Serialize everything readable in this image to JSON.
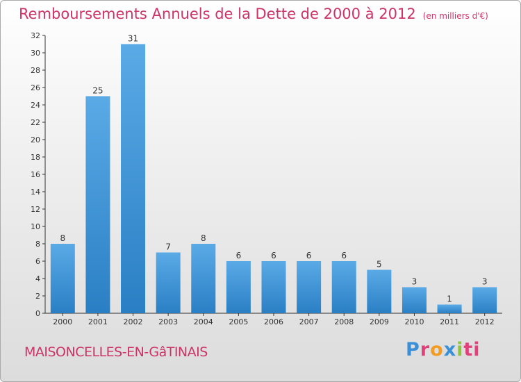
{
  "title": "Remboursements Annuels de la Dette de 2000 à 2012",
  "subtitle": "(en milliers d'€)",
  "commune": "MAISONCELLES-EN-GâTINAIS",
  "logo": {
    "p1": "P",
    "p2": "r",
    "p3": "o",
    "p4": "x",
    "p5": "i",
    "p6": "ti"
  },
  "colors": {
    "title": "#cc3366",
    "bar_light": "#5aaae6",
    "bar_dark": "#2a7fc4"
  },
  "chart_data": {
    "type": "bar",
    "categories": [
      "2000",
      "2001",
      "2002",
      "2003",
      "2004",
      "2005",
      "2006",
      "2007",
      "2008",
      "2009",
      "2010",
      "2011",
      "2012"
    ],
    "values": [
      8,
      25,
      31,
      7,
      8,
      6,
      6,
      6,
      6,
      5,
      3,
      1,
      3
    ],
    "ylim": [
      0,
      32
    ],
    "yticks": [
      0,
      2,
      4,
      6,
      8,
      10,
      12,
      14,
      16,
      18,
      20,
      22,
      24,
      26,
      28,
      30,
      32
    ],
    "xlabel": "",
    "ylabel": "",
    "grid": false,
    "legend": "none"
  }
}
